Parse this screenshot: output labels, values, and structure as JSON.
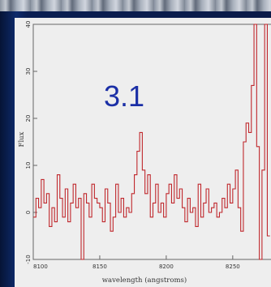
{
  "slide": {
    "overlay_label": "3.1"
  },
  "chart_data": {
    "type": "line",
    "step": true,
    "xlabel": "wavelength (angstroms)",
    "ylabel": "Flux",
    "xlim": [
      8100,
      8280
    ],
    "ylim": [
      -10,
      40
    ],
    "xticks": [
      8100,
      8150,
      8200,
      8250
    ],
    "yticks": [
      -10,
      0,
      10,
      20,
      30,
      40
    ],
    "grid": false,
    "colors": {
      "line": "#c0282d",
      "axes": "#555555",
      "panel": "#eeeeee"
    },
    "x": [
      8100,
      8102,
      8104,
      8106,
      8108,
      8110,
      8112,
      8114,
      8116,
      8118,
      8120,
      8122,
      8124,
      8126,
      8128,
      8130,
      8132,
      8134,
      8136,
      8138,
      8140,
      8142,
      8144,
      8146,
      8148,
      8150,
      8152,
      8154,
      8156,
      8158,
      8160,
      8162,
      8164,
      8166,
      8168,
      8170,
      8172,
      8174,
      8176,
      8178,
      8180,
      8182,
      8184,
      8186,
      8188,
      8190,
      8192,
      8194,
      8196,
      8198,
      8200,
      8202,
      8204,
      8206,
      8208,
      8210,
      8212,
      8214,
      8216,
      8218,
      8220,
      8222,
      8224,
      8226,
      8228,
      8230,
      8232,
      8234,
      8236,
      8238,
      8240,
      8242,
      8244,
      8246,
      8248,
      8250,
      8252,
      8254,
      8256,
      8258,
      8260,
      8262,
      8264,
      8266,
      8268,
      8270,
      8272,
      8274,
      8276
    ],
    "y": [
      -1,
      3,
      1,
      7,
      2,
      4,
      -3,
      1,
      -2,
      8,
      3,
      -1,
      5,
      -2,
      2,
      6,
      1,
      3,
      -12,
      4,
      2,
      -1,
      6,
      3,
      2,
      1,
      -2,
      5,
      2,
      -4,
      -1,
      6,
      0,
      3,
      -1,
      1,
      0,
      4,
      8,
      13,
      17,
      9,
      4,
      8,
      -1,
      2,
      6,
      0,
      2,
      -1,
      4,
      6,
      2,
      8,
      3,
      5,
      1,
      -2,
      3,
      0,
      1,
      -3,
      6,
      -1,
      2,
      5,
      0,
      1,
      2,
      -1,
      0,
      3,
      1,
      6,
      2,
      5,
      9,
      1,
      -4,
      15,
      19,
      17,
      27,
      40,
      14,
      -11,
      9,
      40,
      -5
    ]
  }
}
